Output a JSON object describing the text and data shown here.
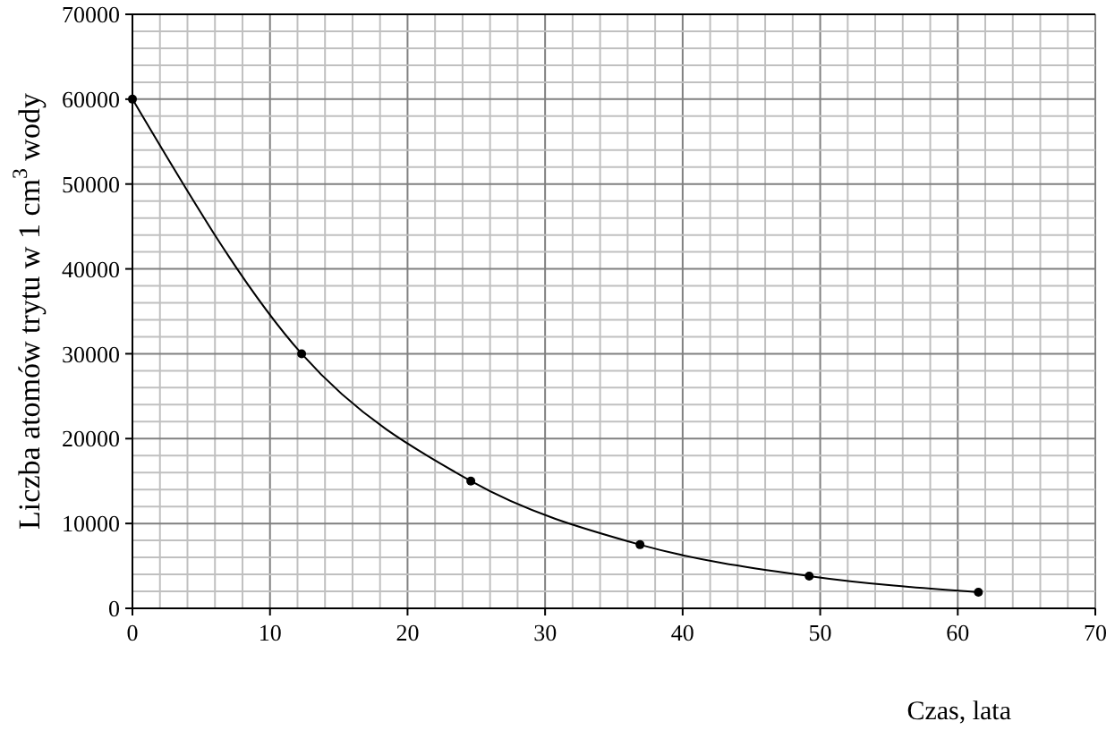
{
  "chart_data": {
    "type": "line",
    "xlabel": "Czas, lata",
    "ylabel": "Liczba atomów trytu w 1 cm$^{3}$ wody",
    "x": [
      0,
      12.3,
      24.6,
      36.9,
      49.2,
      61.5
    ],
    "series": [
      {
        "color": "#000000",
        "values": [
          60000,
          30000,
          15000,
          7500,
          3800,
          1900
        ]
      }
    ],
    "marker": "circle",
    "line_style": "solid",
    "grid": true,
    "xlim": [
      0,
      70
    ],
    "xticks": [
      0,
      {
        "value": 2,
        "label": null
      },
      {
        "value": 4,
        "label": null
      },
      {
        "value": 6,
        "label": null
      },
      {
        "value": 8,
        "label": null
      },
      10,
      {
        "value": 12,
        "label": null
      },
      {
        "value": 14,
        "label": null
      },
      {
        "value": 16,
        "label": null
      },
      {
        "value": 18,
        "label": null
      },
      20,
      {
        "value": 22,
        "label": null
      },
      {
        "value": 24,
        "label": null
      },
      {
        "value": 26,
        "label": null
      },
      {
        "value": 28,
        "label": null
      },
      30,
      {
        "value": 32,
        "label": null
      },
      {
        "value": 34,
        "label": null
      },
      {
        "value": 36,
        "label": null
      },
      {
        "value": 38,
        "label": null
      },
      40,
      {
        "value": 42,
        "label": null
      },
      {
        "value": 44,
        "label": null
      },
      {
        "value": 46,
        "label": null
      },
      {
        "value": 48,
        "label": null
      },
      50,
      {
        "value": 52,
        "label": null
      },
      {
        "value": 54,
        "label": null
      },
      {
        "value": 56,
        "label": null
      },
      {
        "value": 58,
        "label": null
      },
      60,
      {
        "value": 62,
        "label": null
      },
      {
        "value": 64,
        "label": null
      },
      {
        "value": 66,
        "label": null
      },
      {
        "value": 68,
        "label": null
      },
      70
    ],
    "ylim": [
      0,
      70000
    ],
    "yticks": [
      0,
      {
        "value": 2000,
        "label": null
      },
      {
        "value": 4000,
        "label": null
      },
      {
        "value": 6000,
        "label": null
      },
      {
        "value": 8000,
        "label": null
      },
      10000,
      {
        "value": 12000,
        "label": null
      },
      {
        "value": 14000,
        "label": null
      },
      {
        "value": 16000,
        "label": null
      },
      {
        "value": 18000,
        "label": null
      },
      20000,
      {
        "value": 22000,
        "label": null
      },
      {
        "value": 24000,
        "label": null
      },
      {
        "value": 26000,
        "label": null
      },
      {
        "value": 28000,
        "label": null
      },
      30000,
      {
        "value": 32000,
        "label": null
      },
      {
        "value": 34000,
        "label": null
      },
      {
        "value": 36000,
        "label": null
      },
      {
        "value": 38000,
        "label": null
      },
      40000,
      {
        "value": 42000,
        "label": null
      },
      {
        "value": 44000,
        "label": null
      },
      {
        "value": 46000,
        "label": null
      },
      {
        "value": 48000,
        "label": null
      },
      50000,
      {
        "value": 52000,
        "label": null
      },
      {
        "value": 54000,
        "label": null
      },
      {
        "value": 56000,
        "label": null
      },
      {
        "value": 58000,
        "label": null
      },
      60000,
      {
        "value": 62000,
        "label": null
      },
      {
        "value": 64000,
        "label": null
      },
      {
        "value": 66000,
        "label": null
      },
      {
        "value": 68000,
        "label": null
      },
      70000
    ]
  }
}
